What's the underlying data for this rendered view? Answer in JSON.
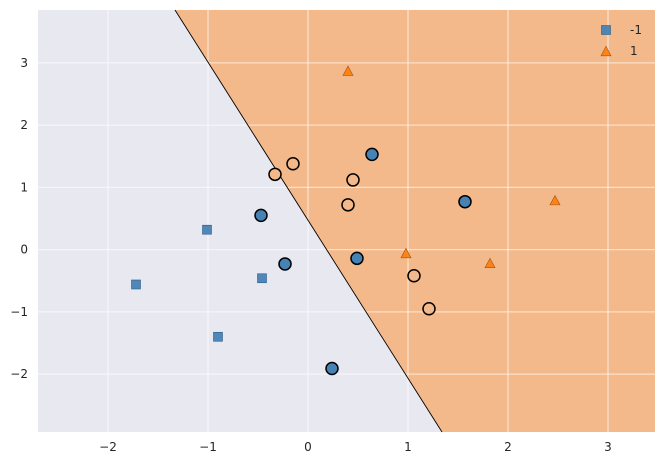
{
  "chart_data": {
    "type": "scatter",
    "title": "",
    "xlabel": "",
    "ylabel": "",
    "xlim": [
      -2.7,
      3.47
    ],
    "ylim": [
      -2.93,
      3.85
    ],
    "grid": true,
    "x_ticks": [
      -2,
      -1,
      0,
      1,
      2,
      3
    ],
    "y_ticks": [
      -2,
      -1,
      0,
      1,
      2,
      3
    ],
    "x_tick_labels": [
      "−2",
      "−1",
      "0",
      "1",
      "2",
      "3"
    ],
    "y_tick_labels": [
      "−2",
      "−1",
      "0",
      "1",
      "2",
      "3"
    ],
    "decision_boundary": {
      "points": [
        [
          -1.33,
          3.85
        ],
        [
          1.34,
          -2.93
        ]
      ],
      "region_left_class": "-1",
      "region_right_class": "1",
      "region_left_color": "#e8e8f1",
      "region_right_color": "#f4b98a"
    },
    "series": [
      {
        "name": "-1",
        "marker": "square",
        "color": "#4682b4",
        "points": [
          {
            "x": -1.72,
            "y": -0.56
          },
          {
            "x": -1.01,
            "y": 0.32
          },
          {
            "x": -0.9,
            "y": -1.4
          },
          {
            "x": -0.46,
            "y": -0.46
          }
        ]
      },
      {
        "name": "1",
        "marker": "triangle",
        "color": "#ff7f0e",
        "points": [
          {
            "x": 0.4,
            "y": 2.86
          },
          {
            "x": 0.98,
            "y": -0.07
          },
          {
            "x": 1.82,
            "y": -0.23
          },
          {
            "x": 2.47,
            "y": 0.78
          }
        ]
      }
    ],
    "highlighted": [
      {
        "x": -0.47,
        "y": 0.55,
        "fill": "#4682b4"
      },
      {
        "x": -0.23,
        "y": -0.23,
        "fill": "#4682b4"
      },
      {
        "x": 0.24,
        "y": -1.91,
        "fill": "#4682b4"
      },
      {
        "x": 0.49,
        "y": -0.14,
        "fill": "#4682b4"
      },
      {
        "x": 0.64,
        "y": 1.53,
        "fill": "#4682b4"
      },
      {
        "x": 1.57,
        "y": 0.77,
        "fill": "#4682b4"
      },
      {
        "x": -0.33,
        "y": 1.21,
        "fill": "#f4b98a"
      },
      {
        "x": -0.15,
        "y": 1.38,
        "fill": "#f4b98a"
      },
      {
        "x": 0.4,
        "y": 0.72,
        "fill": "#f4b98a"
      },
      {
        "x": 0.45,
        "y": 1.12,
        "fill": "#f4b98a"
      },
      {
        "x": 1.06,
        "y": -0.42,
        "fill": "#f4b98a"
      },
      {
        "x": 1.21,
        "y": -0.95,
        "fill": "#f4b98a"
      }
    ],
    "legend": {
      "placement": "top-right",
      "entries": [
        {
          "label": "-1",
          "marker": "square",
          "color": "#4682b4"
        },
        {
          "label": "1",
          "marker": "triangle",
          "color": "#ff7f0e"
        }
      ]
    },
    "colors": {
      "axes_background": "#eaeaf2",
      "grid": "#ffffff",
      "tick_text": "#262626",
      "boundary_line": "#000000",
      "marker_edge": "#000000"
    }
  }
}
